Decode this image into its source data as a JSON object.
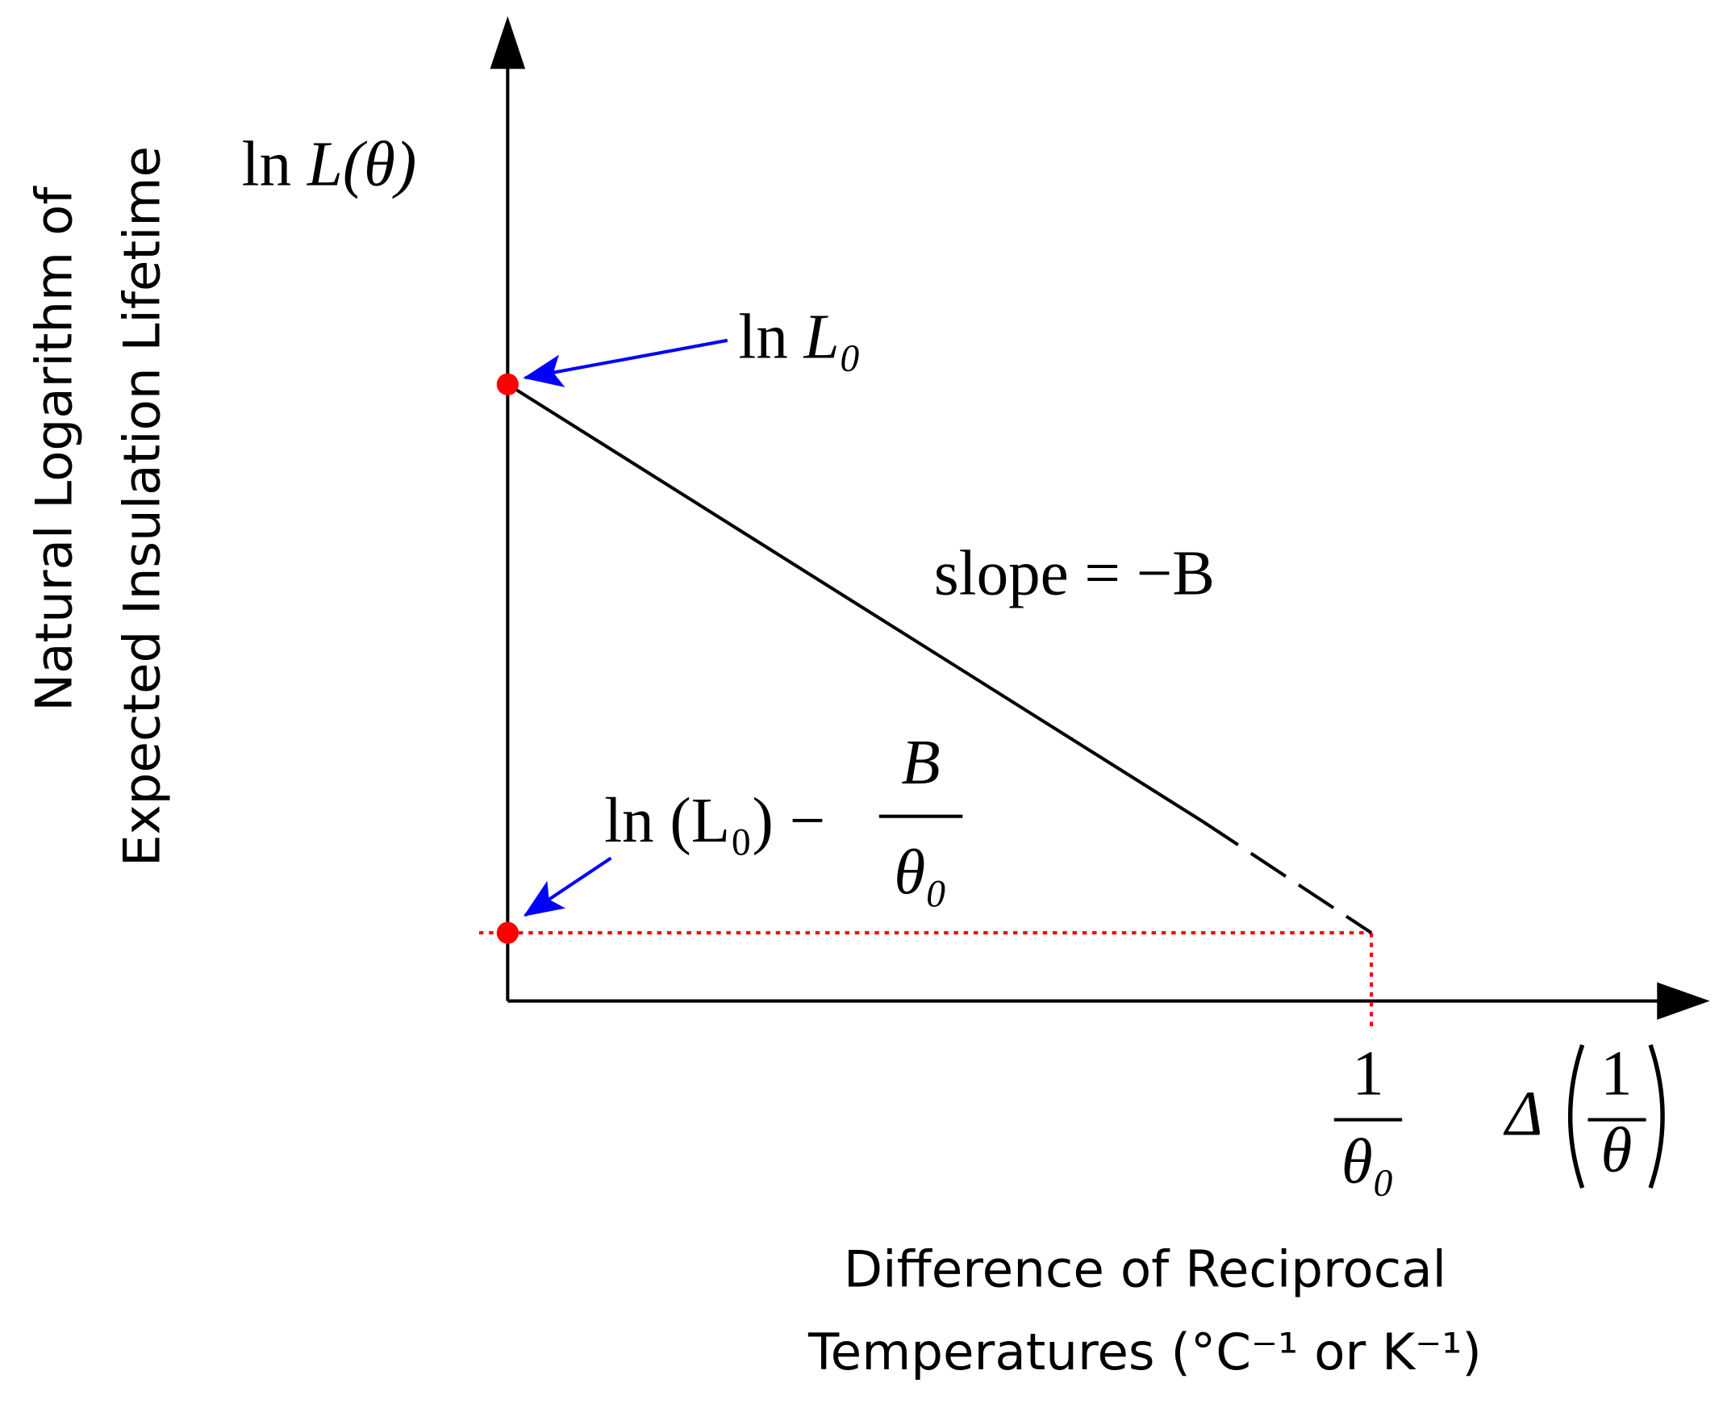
{
  "y_axis": {
    "title": [
      "Natural Logarithm of",
      "Expected Insulation Lifetime"
    ],
    "symbol": {
      "fn": "ln",
      "var": "L(θ)"
    }
  },
  "x_axis": {
    "title": [
      "Difference of Reciprocal",
      "Temperatures (°C⁻¹ or K⁻¹)"
    ],
    "symbol": {
      "prefix": "Δ",
      "numerator": "1",
      "denominator": "θ"
    },
    "tick": {
      "numerator": "1",
      "denominator": "θ₀"
    }
  },
  "intercept_label": {
    "fn": "ln",
    "var": "L₀"
  },
  "endpoint_label": {
    "main": "ln (L₀) −",
    "numerator": "B",
    "denominator": "θ₀"
  },
  "slope_label": "slope = −B"
}
